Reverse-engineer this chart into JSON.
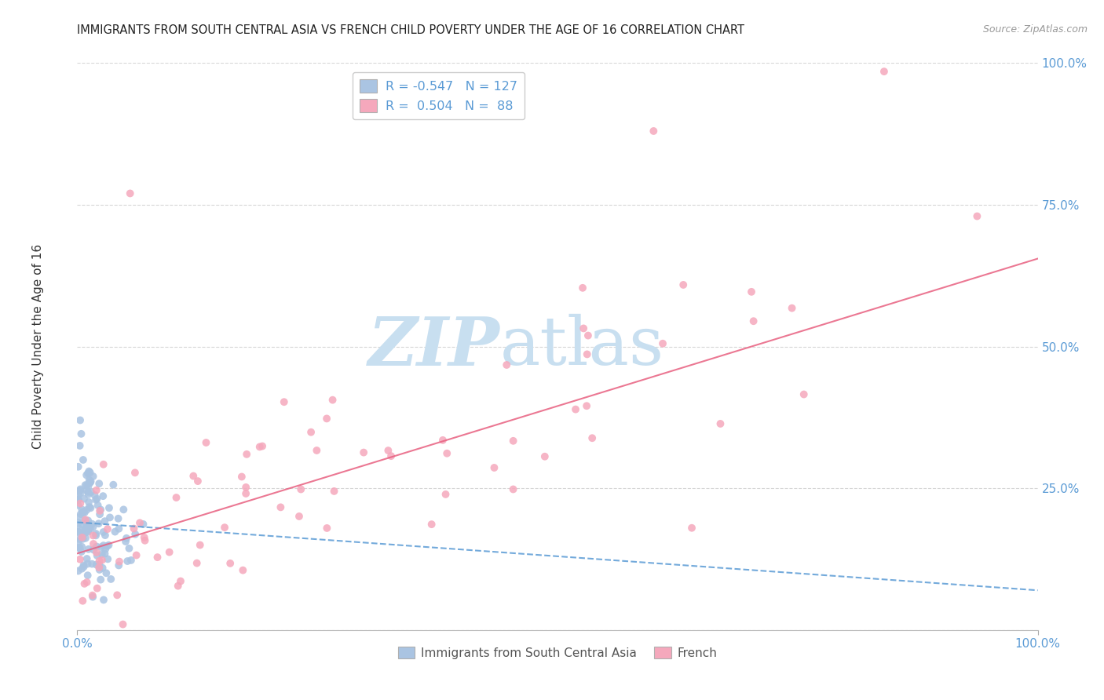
{
  "title": "IMMIGRANTS FROM SOUTH CENTRAL ASIA VS FRENCH CHILD POVERTY UNDER THE AGE OF 16 CORRELATION CHART",
  "source": "Source: ZipAtlas.com",
  "ylabel": "Child Poverty Under the Age of 16",
  "legend_label_blue": "Immigrants from South Central Asia",
  "legend_label_pink": "French",
  "R_blue": -0.547,
  "N_blue": 127,
  "R_pink": 0.504,
  "N_pink": 88,
  "blue_color": "#aac4e2",
  "pink_color": "#f5a8bc",
  "blue_line_color": "#5b9bd5",
  "pink_line_color": "#e86080",
  "watermark_zip": "ZIP",
  "watermark_atlas": "atlas",
  "watermark_color_zip": "#c8dff0",
  "watermark_color_atlas": "#c8dff0",
  "background_color": "#ffffff",
  "grid_color": "#cccccc",
  "tick_color": "#5b9bd5",
  "title_color": "#222222",
  "source_color": "#999999",
  "ylabel_color": "#333333"
}
